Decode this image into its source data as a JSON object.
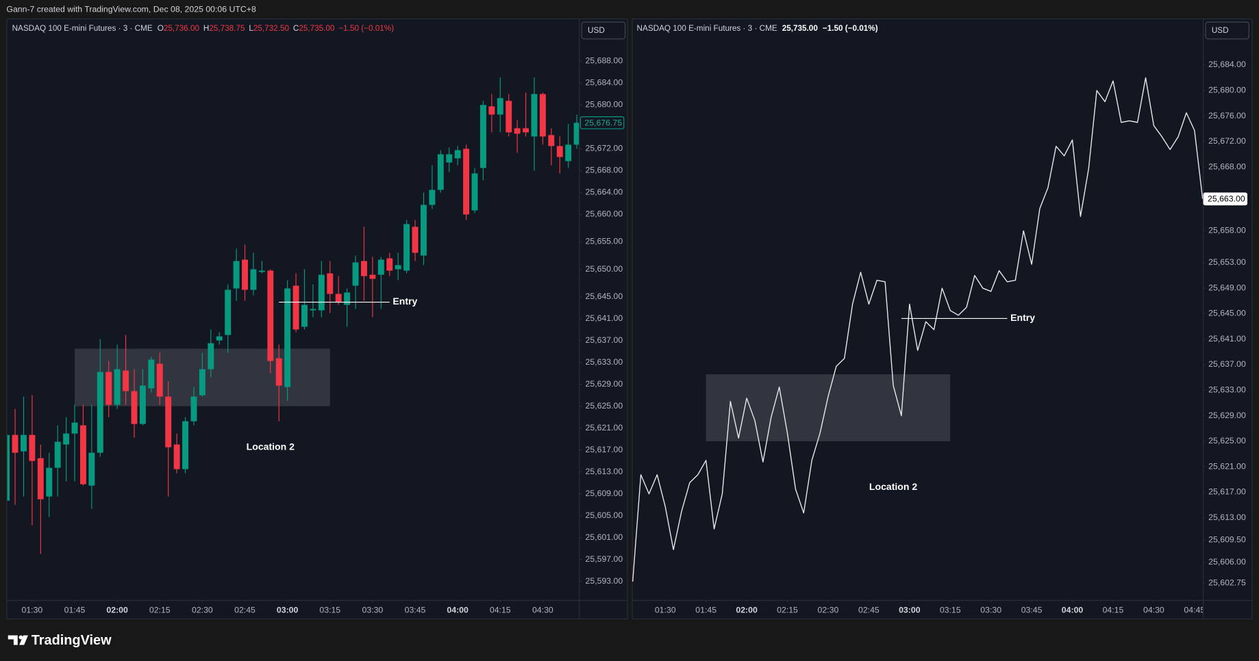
{
  "header": {
    "caption": "Gann-7 created with TradingView.com, Dec 08, 2025 00:06 UTC+8"
  },
  "footer": {
    "brand": "TradingView"
  },
  "chart_data": [
    {
      "type": "candlestick",
      "title": "NASDAQ 100 E-mini Futures · 3 · CME",
      "legend": [
        {
          "key": "O",
          "text": "25,736.00"
        },
        {
          "key": "H",
          "text": "25,738.75"
        },
        {
          "key": "L",
          "text": "25,732.50"
        },
        {
          "key": "C",
          "text": "25,735.00"
        }
      ],
      "change": "−1.50 (−0.01%)",
      "currency": "USD",
      "up_color": "#089981",
      "down_color": "#f23645",
      "x": [
        "01:21",
        "01:24",
        "01:27",
        "01:30",
        "01:33",
        "01:36",
        "01:39",
        "01:42",
        "01:45",
        "01:48",
        "01:51",
        "01:54",
        "01:57",
        "02:00",
        "02:03",
        "02:06",
        "02:09",
        "02:12",
        "02:15",
        "02:18",
        "02:21",
        "02:24",
        "02:27",
        "02:30",
        "02:33",
        "02:36",
        "02:39",
        "02:42",
        "02:45",
        "02:48",
        "02:51",
        "02:54",
        "02:57",
        "03:00",
        "03:03",
        "03:06",
        "03:09",
        "03:12",
        "03:15",
        "03:18",
        "03:21",
        "03:24",
        "03:27",
        "03:30",
        "03:33",
        "03:36",
        "03:39",
        "03:42",
        "03:45",
        "03:48",
        "03:51",
        "03:54",
        "03:57",
        "04:00",
        "04:03",
        "04:06",
        "04:09",
        "04:12",
        "04:15",
        "04:18",
        "04:21",
        "04:24",
        "04:27",
        "04:30",
        "04:33",
        "04:36",
        "04:39",
        "04:42"
      ],
      "open": [
        25607.75,
        25619.75,
        25616.75,
        25619.75,
        25615.5,
        25608.5,
        25613.75,
        25618.0,
        25620.0,
        25621.5,
        25610.5,
        25616.5,
        25631.25,
        25625.25,
        25631.5,
        25627.75,
        25621.75,
        25628.25,
        25632.75,
        25626.75,
        25618.0,
        25613.5,
        25622.25,
        25627.0,
        25631.75,
        25637.0,
        25638.0,
        25646.5,
        25651.75,
        25646.25,
        25649.5,
        25649.75,
        25633.75,
        25628.5,
        25647.0,
        25639.5,
        25642.5,
        25642.5,
        25649.25,
        25645.5,
        25643.5,
        25647.0,
        25651.5,
        25649.0,
        25649.0,
        25652.0,
        25650.0,
        25649.75,
        25657.75,
        25652.5,
        25661.75,
        25664.5,
        25669.5,
        25670.25,
        25672.0,
        25660.75,
        25668.5,
        25679.75,
        25678.25,
        25680.75,
        25675.75,
        25675.75,
        25674.25,
        25682.0,
        25674.5,
        25672.5,
        25669.75,
        25672.75
      ],
      "high": [
        25620.0,
        25624.5,
        25626.75,
        25627.0,
        25618.0,
        25616.5,
        25621.5,
        25623.0,
        25625.25,
        25625.25,
        25625.25,
        25637.25,
        25633.25,
        25636.25,
        25638.0,
        25631.75,
        25631.75,
        25634.0,
        25634.75,
        25629.5,
        25620.0,
        25623.0,
        25628.5,
        25634.75,
        25639.0,
        25638.5,
        25647.25,
        25653.75,
        25654.5,
        25653.0,
        25651.5,
        25650.0,
        25636.25,
        25648.0,
        25649.25,
        25650.0,
        25647.25,
        25651.5,
        25651.5,
        25648.75,
        25646.5,
        25652.5,
        25657.75,
        25652.25,
        25652.25,
        25653.0,
        25653.0,
        25659.0,
        25659.0,
        25664.0,
        25669.0,
        25671.75,
        25672.25,
        25672.5,
        25672.75,
        25668.5,
        25680.75,
        25682.0,
        25685.0,
        25682.0,
        25677.25,
        25682.25,
        25685.0,
        25682.25,
        25675.75,
        25674.25,
        25676.5,
        25678.25
      ],
      "low": [
        25607.0,
        25607.0,
        25608.5,
        25603.25,
        25598.0,
        25604.75,
        25608.5,
        25611.25,
        25611.25,
        25610.5,
        25606.25,
        25615.75,
        25623.0,
        25624.5,
        25625.25,
        25619.25,
        25621.5,
        25627.5,
        25625.25,
        25608.5,
        25612.75,
        25612.75,
        25621.5,
        25626.75,
        25630.25,
        25636.25,
        25634.75,
        25644.25,
        25644.25,
        25645.25,
        25649.25,
        25631.0,
        25622.25,
        25626.0,
        25638.5,
        25639.0,
        25641.25,
        25641.25,
        25642.0,
        25643.5,
        25639.5,
        25642.75,
        25644.25,
        25641.25,
        25642.75,
        25648.75,
        25648.0,
        25649.25,
        25651.5,
        25650.75,
        25661.0,
        25664.0,
        25667.75,
        25669.0,
        25659.0,
        25660.25,
        25666.25,
        25675.0,
        25675.0,
        25674.25,
        25671.25,
        25674.25,
        25668.0,
        25672.75,
        25669.0,
        25667.5,
        25668.5,
        25672.0
      ],
      "close": [
        25619.75,
        25616.5,
        25619.75,
        25615.0,
        25608.0,
        25613.75,
        25618.5,
        25620.0,
        25622.0,
        25610.75,
        25616.5,
        25631.25,
        25625.25,
        25631.75,
        25627.75,
        25621.75,
        25628.75,
        25633.5,
        25626.75,
        25617.5,
        25613.5,
        25622.25,
        25626.75,
        25631.75,
        25636.5,
        25637.75,
        25646.25,
        25651.5,
        25646.25,
        25650.0,
        25649.75,
        25633.25,
        25628.75,
        25646.5,
        25639.0,
        25643.5,
        25642.75,
        25649.0,
        25645.5,
        25644.0,
        25645.75,
        25651.25,
        25648.75,
        25648.25,
        25651.75,
        25649.75,
        25650.75,
        25658.25,
        25653.0,
        25661.75,
        25664.5,
        25671.0,
        25671.0,
        25671.75,
        25660.0,
        25667.5,
        25680.0,
        25678.25,
        25681.25,
        25675.0,
        25674.75,
        25675.0,
        25682.0,
        25674.25,
        25672.5,
        25670.5,
        25672.75,
        25676.75
      ],
      "ylim": [
        25589.6,
        25695.8
      ],
      "yticks": [
        {
          "value": 25688,
          "label": "25,688.00"
        },
        {
          "value": 25684,
          "label": "25,684.00"
        },
        {
          "value": 25680,
          "label": "25,680.00"
        },
        {
          "value": 25672,
          "label": "25,672.00"
        },
        {
          "value": 25668,
          "label": "25,668.00"
        },
        {
          "value": 25664,
          "label": "25,664.00"
        },
        {
          "value": 25660,
          "label": "25,660.00"
        },
        {
          "value": 25655,
          "label": "25,655.00"
        },
        {
          "value": 25650,
          "label": "25,650.00"
        },
        {
          "value": 25645,
          "label": "25,645.00"
        },
        {
          "value": 25641,
          "label": "25,641.00"
        },
        {
          "value": 25637,
          "label": "25,637.00"
        },
        {
          "value": 25633,
          "label": "25,633.00"
        },
        {
          "value": 25629,
          "label": "25,629.00"
        },
        {
          "value": 25625,
          "label": "25,625.00"
        },
        {
          "value": 25621,
          "label": "25,621.00"
        },
        {
          "value": 25617,
          "label": "25,617.00"
        },
        {
          "value": 25613,
          "label": "25,613.00"
        },
        {
          "value": 25609,
          "label": "25,609.00"
        },
        {
          "value": 25605,
          "label": "25,605.00"
        },
        {
          "value": 25601,
          "label": "25,601.00"
        },
        {
          "value": 25597,
          "label": "25,597.00"
        },
        {
          "value": 25593,
          "label": "25,593.00"
        }
      ],
      "xticks": [
        "01:30",
        "01:45",
        "02:00",
        "02:15",
        "02:30",
        "02:45",
        "03:00",
        "03:15",
        "03:30",
        "03:45",
        "04:00",
        "04:15",
        "04:30"
      ],
      "last_price": {
        "value": 25676.75,
        "label": "25,676.75"
      },
      "zone": {
        "x": [
          "01:45",
          "03:15"
        ],
        "y": [
          25625.0,
          25635.5
        ]
      },
      "entry": {
        "text": "Entry",
        "x": [
          "02:57",
          "03:36"
        ],
        "y": 25644.0
      },
      "note": {
        "text": "Location 2",
        "x": "02:54",
        "y": 25617.5
      }
    },
    {
      "type": "line",
      "title": "NASDAQ 100 E-mini Futures · 3 · CME",
      "last": "25,735.00",
      "change": "−1.50 (−0.01%)",
      "currency": "USD",
      "color": "#e8e8e8",
      "x": [
        "01:18",
        "01:21",
        "01:24",
        "01:27",
        "01:30",
        "01:33",
        "01:36",
        "01:39",
        "01:42",
        "01:45",
        "01:48",
        "01:51",
        "01:54",
        "01:57",
        "02:00",
        "02:03",
        "02:06",
        "02:09",
        "02:12",
        "02:15",
        "02:18",
        "02:21",
        "02:24",
        "02:27",
        "02:30",
        "02:33",
        "02:36",
        "02:39",
        "02:42",
        "02:45",
        "02:48",
        "02:51",
        "02:54",
        "02:57",
        "03:00",
        "03:03",
        "03:06",
        "03:09",
        "03:12",
        "03:15",
        "03:18",
        "03:21",
        "03:24",
        "03:27",
        "03:30",
        "03:33",
        "03:36",
        "03:39",
        "03:42",
        "03:45",
        "03:48",
        "03:51",
        "03:54",
        "03:57",
        "04:00",
        "04:03",
        "04:06",
        "04:09",
        "04:12",
        "04:15",
        "04:18",
        "04:21",
        "04:24",
        "04:27",
        "04:30",
        "04:33",
        "04:36",
        "04:39",
        "04:42",
        "04:45",
        "04:48"
      ],
      "values": [
        25603.0,
        25619.75,
        25616.75,
        25619.75,
        25614.75,
        25608.0,
        25614.0,
        25618.5,
        25619.75,
        25622.0,
        25611.25,
        25616.75,
        25631.25,
        25625.5,
        25631.75,
        25628.25,
        25621.75,
        25628.75,
        25633.5,
        25626.25,
        25617.5,
        25613.75,
        25622.0,
        25626.25,
        25632.0,
        25636.75,
        25638.0,
        25646.5,
        25651.5,
        25646.5,
        25650.25,
        25650.0,
        25633.75,
        25629.0,
        25646.5,
        25639.25,
        25643.75,
        25642.5,
        25649.0,
        25645.5,
        25644.75,
        25646.0,
        25651.0,
        25649.0,
        25648.5,
        25651.75,
        25650.0,
        25650.25,
        25658.0,
        25652.75,
        25661.5,
        25664.75,
        25671.25,
        25669.75,
        25672.25,
        25660.25,
        25667.75,
        25680.0,
        25678.25,
        25681.5,
        25675.0,
        25675.25,
        25675.0,
        25682.0,
        25674.5,
        25672.75,
        25670.75,
        25672.75,
        25676.5,
        25673.75,
        25663.0
      ],
      "ylim": [
        25600.1,
        25691.3
      ],
      "yticks": [
        {
          "value": 25684,
          "label": "25,684.00"
        },
        {
          "value": 25680,
          "label": "25,680.00"
        },
        {
          "value": 25676,
          "label": "25,676.00"
        },
        {
          "value": 25672,
          "label": "25,672.00"
        },
        {
          "value": 25668,
          "label": "25,668.00"
        },
        {
          "value": 25658,
          "label": "25,658.00"
        },
        {
          "value": 25653,
          "label": "25,653.00"
        },
        {
          "value": 25649,
          "label": "25,649.00"
        },
        {
          "value": 25645,
          "label": "25,645.00"
        },
        {
          "value": 25641,
          "label": "25,641.00"
        },
        {
          "value": 25637,
          "label": "25,637.00"
        },
        {
          "value": 25633,
          "label": "25,633.00"
        },
        {
          "value": 25629,
          "label": "25,629.00"
        },
        {
          "value": 25625,
          "label": "25,625.00"
        },
        {
          "value": 25621,
          "label": "25,621.00"
        },
        {
          "value": 25617,
          "label": "25,617.00"
        },
        {
          "value": 25613,
          "label": "25,613.00"
        },
        {
          "value": 25609.5,
          "label": "25,609.50"
        },
        {
          "value": 25606,
          "label": "25,606.00"
        },
        {
          "value": 25602.75,
          "label": "25,602.75"
        }
      ],
      "xticks": [
        "01:30",
        "01:45",
        "02:00",
        "02:15",
        "02:30",
        "02:45",
        "03:00",
        "03:15",
        "03:30",
        "03:45",
        "04:00",
        "04:15",
        "04:30",
        "04:45"
      ],
      "last_price": {
        "value": 25663.0,
        "label": "25,663.00"
      },
      "zone": {
        "x": [
          "01:45",
          "03:15"
        ],
        "y": [
          25625.0,
          25635.5
        ]
      },
      "entry": {
        "text": "Entry",
        "x": [
          "02:57",
          "03:36"
        ],
        "y": 25644.25
      },
      "note": {
        "text": "Location 2",
        "x": "02:54",
        "y": 25617.75
      }
    }
  ]
}
